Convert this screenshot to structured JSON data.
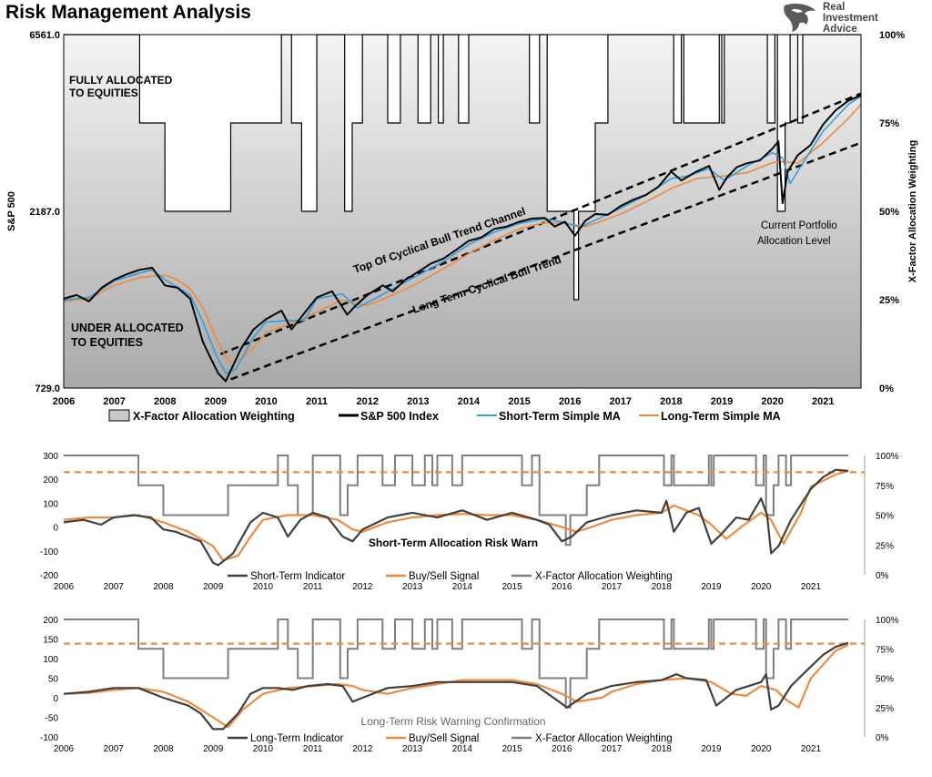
{
  "header": {
    "title": "Risk Management Analysis",
    "logo_lines": [
      "Real",
      "Investment",
      "Advice"
    ],
    "logo_icon": "eagle-head-icon"
  },
  "colors": {
    "sp500": "#000000",
    "short_ma": "#2e9fdc",
    "long_ma": "#ef8a3c",
    "allocation": "#7f7f7f",
    "indicator": "#404040",
    "signal": "#ef8a3c",
    "threshold": "#ef8a3c",
    "channel": "#000000"
  },
  "chart_data": [
    {
      "type": "line",
      "title": "Risk Management Analysis",
      "ylabel": "S&P 500",
      "y2label": "X-Factor Allocation Weighting",
      "y_scale": "log",
      "ylim": [
        729.0,
        6561.0
      ],
      "y_ticks": [
        "6561.0",
        "2187.0",
        "729.0"
      ],
      "y2_ticks": [
        "100%",
        "75%",
        "50%",
        "25%",
        "0%"
      ],
      "x_ticks": [
        "2006",
        "2007",
        "2008",
        "2009",
        "2010",
        "2011",
        "2012",
        "2013",
        "2014",
        "2015",
        "2016",
        "2017",
        "2018",
        "2019",
        "2020",
        "2021"
      ],
      "xlim": [
        2006.0,
        2021.75
      ],
      "grid": false,
      "legend_position": "bottom",
      "legend": [
        "X-Factor Allocation Weighting",
        "S&P 500 Index",
        "Short-Term Simple MA",
        "Long-Term Simple MA"
      ],
      "annotations": {
        "fully": [
          "FULLY ALLOCATED",
          "TO EQUITIES"
        ],
        "under": [
          "UNDER ALLOCATED",
          "TO EQUITIES"
        ],
        "top_channel": "Top Of Cyclical Bull Trend Channel",
        "long_trend": "Long Term Cyclical Bull Trend",
        "current": [
          "Current Portfolio",
          "Allocation Level"
        ]
      },
      "series": [
        {
          "name": "S&P 500 Index",
          "x": [
            2006.0,
            2006.25,
            2006.5,
            2006.75,
            2007.0,
            2007.25,
            2007.5,
            2007.75,
            2008.0,
            2008.25,
            2008.5,
            2008.75,
            2008.9,
            2009.05,
            2009.2,
            2009.5,
            2009.75,
            2010.0,
            2010.3,
            2010.5,
            2010.75,
            2011.0,
            2011.3,
            2011.6,
            2011.75,
            2012.0,
            2012.3,
            2012.5,
            2012.75,
            2013.0,
            2013.25,
            2013.5,
            2013.75,
            2014.0,
            2014.25,
            2014.5,
            2014.75,
            2015.0,
            2015.25,
            2015.5,
            2015.7,
            2015.9,
            2016.1,
            2016.3,
            2016.5,
            2016.75,
            2017.0,
            2017.25,
            2017.5,
            2017.75,
            2018.0,
            2018.2,
            2018.5,
            2018.75,
            2018.95,
            2019.1,
            2019.3,
            2019.5,
            2019.75,
            2020.0,
            2020.12,
            2020.2,
            2020.3,
            2020.5,
            2020.75,
            2021.0,
            2021.25,
            2021.5,
            2021.75
          ],
          "y": [
            1270,
            1300,
            1250,
            1360,
            1430,
            1480,
            1520,
            1540,
            1380,
            1360,
            1270,
            970,
            880,
            800,
            760,
            930,
            1050,
            1120,
            1180,
            1050,
            1160,
            1280,
            1330,
            1150,
            1210,
            1300,
            1380,
            1330,
            1430,
            1500,
            1580,
            1630,
            1720,
            1820,
            1860,
            1960,
            1990,
            2050,
            2090,
            2100,
            1990,
            2050,
            1880,
            2060,
            2150,
            2140,
            2260,
            2350,
            2420,
            2550,
            2800,
            2650,
            2800,
            2900,
            2500,
            2700,
            2880,
            2950,
            3000,
            3230,
            3380,
            2300,
            2800,
            3100,
            3300,
            3750,
            4100,
            4350,
            4500
          ]
        },
        {
          "name": "Short-Term Simple MA",
          "x": [
            2006.0,
            2006.5,
            2007.0,
            2007.5,
            2007.75,
            2008.0,
            2008.5,
            2008.75,
            2009.0,
            2009.2,
            2009.4,
            2009.75,
            2010.0,
            2010.5,
            2010.75,
            2011.0,
            2011.5,
            2011.8,
            2012.0,
            2012.5,
            2013.0,
            2013.5,
            2014.0,
            2014.5,
            2015.0,
            2015.5,
            2015.9,
            2016.2,
            2016.5,
            2017.0,
            2017.5,
            2018.0,
            2018.3,
            2018.75,
            2019.05,
            2019.5,
            2020.0,
            2020.2,
            2020.35,
            2020.6,
            2021.0,
            2021.5,
            2021.75
          ],
          "y": [
            1260,
            1280,
            1420,
            1490,
            1520,
            1430,
            1300,
            1100,
            900,
            800,
            820,
            1000,
            1100,
            1110,
            1110,
            1270,
            1310,
            1200,
            1240,
            1350,
            1470,
            1600,
            1780,
            1920,
            2030,
            2090,
            2040,
            1980,
            2070,
            2230,
            2420,
            2680,
            2720,
            2850,
            2650,
            2900,
            3150,
            3050,
            2600,
            2950,
            3600,
            4250,
            4480
          ]
        },
        {
          "name": "Long-Term Simple MA",
          "x": [
            2006.0,
            2006.5,
            2007.0,
            2007.5,
            2008.0,
            2008.25,
            2008.5,
            2008.75,
            2009.0,
            2009.25,
            2009.5,
            2009.75,
            2010.0,
            2010.5,
            2011.0,
            2011.5,
            2011.8,
            2012.0,
            2012.5,
            2013.0,
            2013.5,
            2014.0,
            2014.5,
            2015.0,
            2015.5,
            2016.0,
            2016.3,
            2016.5,
            2017.0,
            2017.5,
            2018.0,
            2018.5,
            2019.0,
            2019.5,
            2020.0,
            2020.2,
            2020.5,
            2021.0,
            2021.5,
            2021.75
          ],
          "y": [
            1250,
            1270,
            1380,
            1450,
            1470,
            1430,
            1350,
            1200,
            1000,
            860,
            870,
            940,
            1030,
            1090,
            1170,
            1260,
            1230,
            1220,
            1300,
            1400,
            1530,
            1680,
            1830,
            1960,
            2040,
            2020,
            1990,
            2030,
            2150,
            2320,
            2520,
            2680,
            2720,
            2780,
            2960,
            2980,
            2950,
            3350,
            3900,
            4250
          ]
        }
      ],
      "allocation_weighting": {
        "name": "X-Factor Allocation Weighting",
        "unit": "percent",
        "x": [
          2006.0,
          2007.5,
          2008.0,
          2009.2,
          2009.3,
          2010.3,
          2010.5,
          2010.7,
          2011.0,
          2011.55,
          2011.7,
          2011.9,
          2012.4,
          2012.65,
          2013.0,
          2013.25,
          2013.4,
          2013.5,
          2013.8,
          2014.0,
          2015.2,
          2015.4,
          2015.55,
          2016.0,
          2016.08,
          2016.17,
          2016.5,
          2016.75,
          2018.05,
          2018.2,
          2018.25,
          2018.95,
          2019.0,
          2019.05,
          2019.9,
          2020.05,
          2020.1,
          2020.25,
          2020.35,
          2020.5,
          2020.6,
          2021.75
        ],
        "y": [
          100,
          75,
          50,
          50,
          75,
          100,
          75,
          50,
          100,
          50,
          75,
          100,
          75,
          100,
          75,
          100,
          75,
          100,
          75,
          100,
          75,
          100,
          50,
          50,
          25,
          50,
          75,
          100,
          75,
          100,
          75,
          100,
          75,
          100,
          75,
          100,
          50,
          75,
          100,
          75,
          100,
          100
        ]
      }
    },
    {
      "type": "line",
      "title": "Short-Term Allocation Risk Warn",
      "ylim": [
        -200,
        300
      ],
      "y_ticks": [
        "300",
        "200",
        "100",
        "0",
        "-100",
        "-200"
      ],
      "y2_ticks": [
        "100%",
        "75%",
        "50%",
        "25%",
        "0%"
      ],
      "x_ticks": [
        "2006",
        "2007",
        "2008",
        "2009",
        "2010",
        "2011",
        "2012",
        "2013",
        "2014",
        "2015",
        "2016",
        "2017",
        "2018",
        "2019",
        "2020",
        "2021"
      ],
      "threshold": 230,
      "legend": [
        "Short-Term Indicator",
        "Buy/Sell Signal",
        "X-Factor Allocation Weighting"
      ],
      "series": [
        {
          "name": "Short-Term Indicator",
          "x": [
            2006.0,
            2006.4,
            2006.75,
            2007.0,
            2007.4,
            2007.75,
            2008.0,
            2008.25,
            2008.5,
            2008.75,
            2009.0,
            2009.1,
            2009.4,
            2009.75,
            2010.0,
            2010.3,
            2010.5,
            2010.75,
            2011.0,
            2011.3,
            2011.6,
            2011.8,
            2012.0,
            2012.5,
            2012.75,
            2013.0,
            2013.5,
            2014.0,
            2014.5,
            2015.0,
            2015.5,
            2015.75,
            2016.0,
            2016.2,
            2016.5,
            2017.0,
            2017.5,
            2018.0,
            2018.1,
            2018.25,
            2018.5,
            2018.75,
            2019.0,
            2019.2,
            2019.5,
            2019.75,
            2020.0,
            2020.12,
            2020.2,
            2020.35,
            2020.6,
            2021.0,
            2021.25,
            2021.5,
            2021.75
          ],
          "y": [
            20,
            30,
            10,
            40,
            50,
            40,
            -10,
            -20,
            -40,
            -60,
            -150,
            -160,
            -110,
            20,
            60,
            40,
            -40,
            30,
            60,
            40,
            -40,
            -60,
            -10,
            40,
            50,
            60,
            40,
            70,
            30,
            60,
            30,
            10,
            -60,
            -40,
            20,
            50,
            70,
            60,
            110,
            -20,
            60,
            80,
            -70,
            -30,
            40,
            30,
            120,
            50,
            -110,
            -80,
            30,
            160,
            210,
            240,
            235
          ]
        },
        {
          "name": "Buy/Sell Signal",
          "x": [
            2006.0,
            2006.5,
            2007.0,
            2007.5,
            2008.0,
            2008.5,
            2009.0,
            2009.2,
            2009.5,
            2009.75,
            2010.0,
            2010.5,
            2011.0,
            2011.5,
            2011.8,
            2012.0,
            2012.5,
            2013.0,
            2013.5,
            2014.0,
            2014.5,
            2015.0,
            2015.5,
            2016.0,
            2016.3,
            2016.6,
            2017.0,
            2017.5,
            2018.0,
            2018.25,
            2018.5,
            2018.75,
            2019.0,
            2019.3,
            2019.6,
            2020.0,
            2020.2,
            2020.45,
            2020.8,
            2021.0,
            2021.5,
            2021.75
          ],
          "y": [
            30,
            40,
            40,
            50,
            20,
            -20,
            -80,
            -140,
            -120,
            -40,
            30,
            50,
            50,
            30,
            -10,
            -20,
            20,
            40,
            50,
            55,
            50,
            50,
            30,
            0,
            -20,
            0,
            30,
            50,
            60,
            90,
            70,
            50,
            10,
            -50,
            0,
            60,
            30,
            -70,
            60,
            170,
            220,
            235
          ]
        }
      ],
      "allocation_weighting": "same as chart 1"
    },
    {
      "type": "line",
      "title": "Long-Term Risk Warning Confirmation",
      "ylim": [
        -100,
        200
      ],
      "y_ticks": [
        "200",
        "150",
        "100",
        "50",
        "0",
        "-50",
        "-100"
      ],
      "y2_ticks": [
        "100%",
        "75%",
        "50%",
        "25%",
        "0%"
      ],
      "x_ticks": [
        "2006",
        "2007",
        "2008",
        "2009",
        "2010",
        "2011",
        "2012",
        "2013",
        "2014",
        "2015",
        "2016",
        "2017",
        "2018",
        "2019",
        "2020",
        "2021"
      ],
      "threshold": 138,
      "legend": [
        "Long-Term Indicator",
        "Buy/Sell Signal",
        "X-Factor Allocation Weighting"
      ],
      "series": [
        {
          "name": "Long-Term Indicator",
          "x": [
            2006.0,
            2006.5,
            2007.0,
            2007.5,
            2008.0,
            2008.25,
            2008.5,
            2008.75,
            2009.0,
            2009.2,
            2009.5,
            2009.75,
            2010.0,
            2010.3,
            2010.6,
            2010.9,
            2011.3,
            2011.6,
            2011.8,
            2012.0,
            2012.5,
            2013.0,
            2013.5,
            2014.0,
            2014.5,
            2015.0,
            2015.5,
            2016.0,
            2016.1,
            2016.5,
            2017.0,
            2017.5,
            2018.0,
            2018.3,
            2018.5,
            2018.9,
            2019.1,
            2019.5,
            2020.0,
            2020.1,
            2020.2,
            2020.35,
            2020.6,
            2021.0,
            2021.25,
            2021.5,
            2021.75
          ],
          "y": [
            10,
            15,
            25,
            25,
            0,
            -10,
            -20,
            -40,
            -80,
            -80,
            -40,
            10,
            25,
            25,
            20,
            30,
            35,
            30,
            -10,
            0,
            25,
            30,
            40,
            40,
            40,
            40,
            30,
            -15,
            -25,
            10,
            30,
            40,
            45,
            60,
            50,
            45,
            -20,
            20,
            40,
            60,
            -30,
            -20,
            30,
            80,
            110,
            130,
            140
          ]
        },
        {
          "name": "Buy/Sell Signal",
          "x": [
            2006.0,
            2006.5,
            2007.0,
            2007.5,
            2008.0,
            2008.5,
            2009.0,
            2009.3,
            2009.6,
            2010.0,
            2010.5,
            2011.0,
            2011.5,
            2011.8,
            2012.0,
            2012.5,
            2013.0,
            2013.5,
            2014.0,
            2015.0,
            2015.5,
            2016.0,
            2016.3,
            2016.8,
            2017.0,
            2017.5,
            2018.0,
            2018.5,
            2019.0,
            2019.4,
            2019.7,
            2020.0,
            2020.3,
            2020.5,
            2020.75,
            2021.0,
            2021.5,
            2021.75
          ],
          "y": [
            10,
            12,
            20,
            25,
            15,
            -10,
            -50,
            -75,
            -30,
            10,
            25,
            30,
            35,
            30,
            20,
            10,
            25,
            35,
            45,
            45,
            35,
            10,
            -10,
            0,
            15,
            35,
            45,
            50,
            40,
            10,
            5,
            30,
            20,
            -5,
            -25,
            50,
            120,
            135
          ]
        }
      ],
      "allocation_weighting": "same as chart 1"
    }
  ]
}
